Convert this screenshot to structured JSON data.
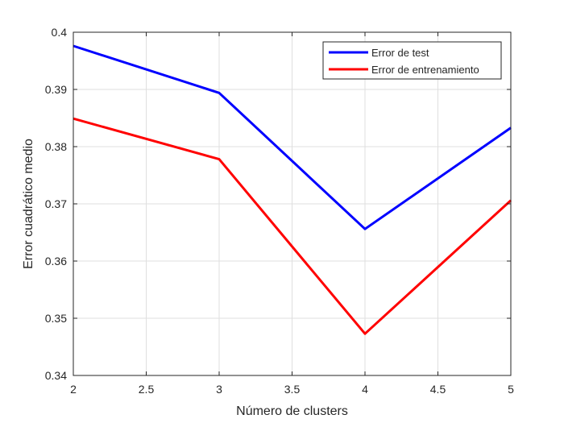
{
  "chart_data": {
    "type": "line",
    "title": "",
    "xlabel": "Número de clusters",
    "ylabel": "Error cuadrático medio",
    "xlim": [
      2,
      5
    ],
    "ylim": [
      0.34,
      0.4
    ],
    "x_ticks": [
      "2",
      "2.5",
      "3",
      "3.5",
      "4",
      "4.5",
      "5"
    ],
    "y_ticks": [
      "0.34",
      "0.35",
      "0.36",
      "0.37",
      "0.38",
      "0.39",
      "0.4"
    ],
    "grid": true,
    "legend_position": "top-right",
    "series": [
      {
        "name": "Error de test",
        "color": "#0000ff",
        "x": [
          2,
          3,
          4,
          5
        ],
        "y": [
          0.3976,
          0.3894,
          0.3656,
          0.3833
        ]
      },
      {
        "name": "Error de entrenamiento",
        "color": "#ff0000",
        "x": [
          2,
          3,
          4,
          5
        ],
        "y": [
          0.3849,
          0.3778,
          0.3473,
          0.3706
        ]
      }
    ]
  }
}
